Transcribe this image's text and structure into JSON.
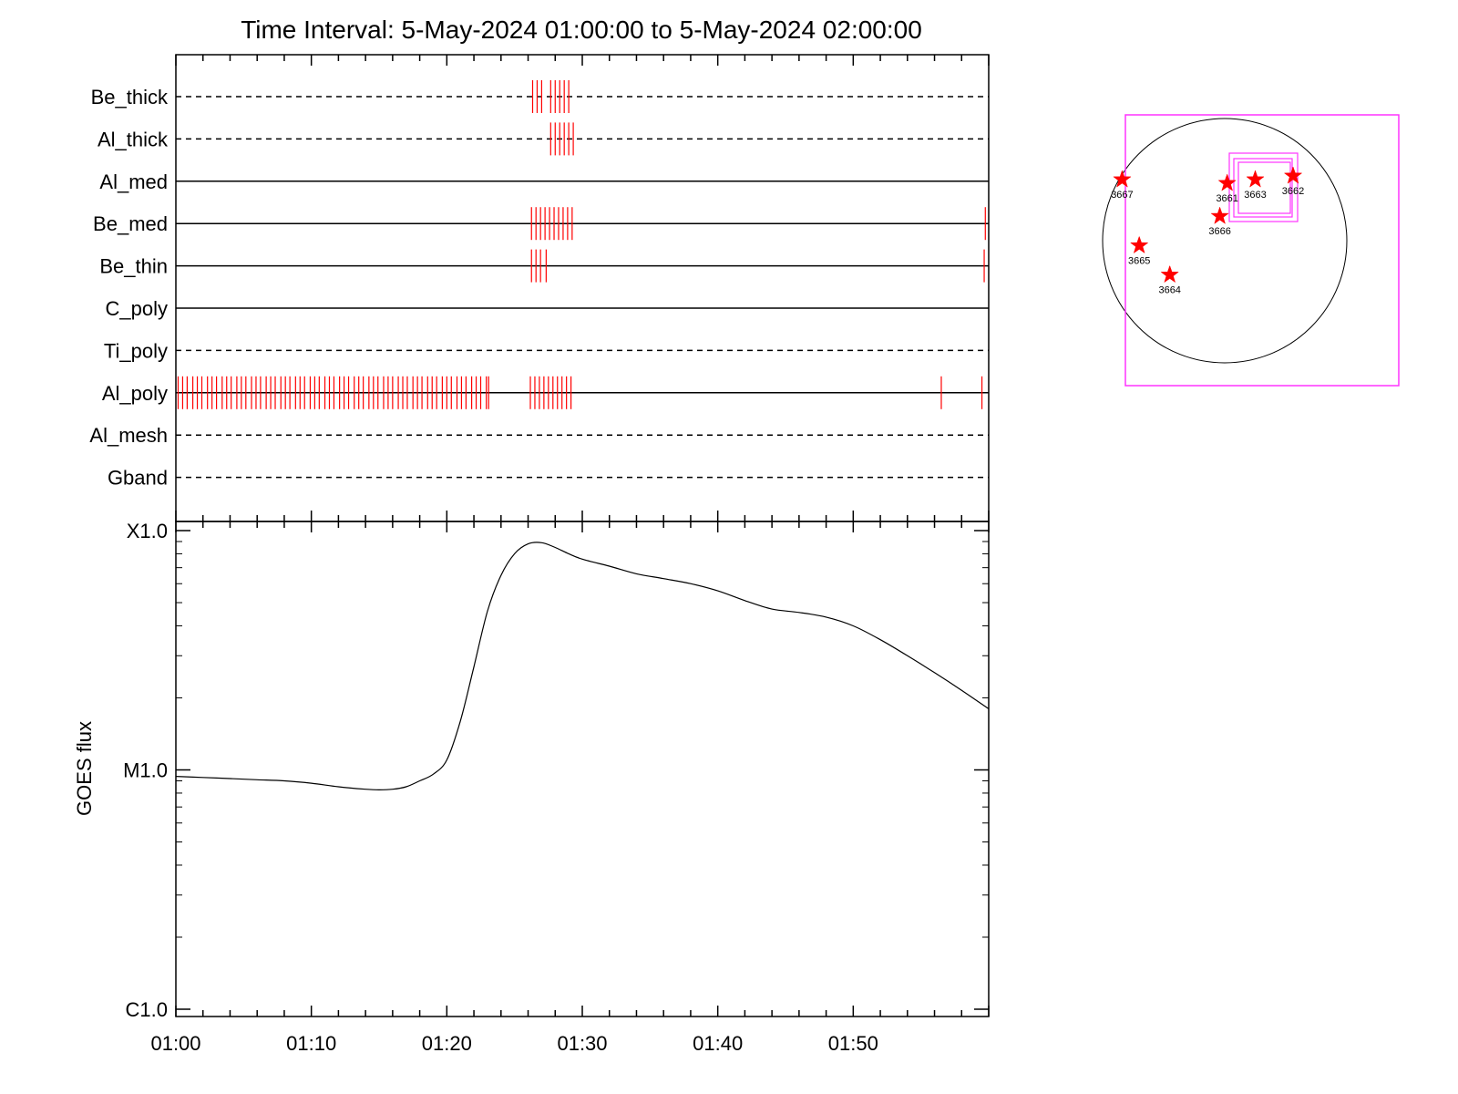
{
  "chart_data": [
    {
      "type": "timeline",
      "title": "Time Interval:  5-May-2024 01:00:00 to  5-May-2024 02:00:00",
      "x_range": [
        "01:00",
        "02:00"
      ],
      "colors": {
        "marker": "#ff0000",
        "line": "#000000"
      },
      "channels": [
        {
          "name": "Be_thick",
          "style": "dashed",
          "events": [
            "01:26:20",
            "01:26:40",
            "01:27:00",
            "01:27:40",
            "01:28:00",
            "01:28:20",
            "01:28:40",
            "01:29:00"
          ]
        },
        {
          "name": "Al_thick",
          "style": "dashed",
          "events": [
            "01:27:40",
            "01:28:00",
            "01:28:20",
            "01:28:40",
            "01:29:00",
            "01:29:20"
          ]
        },
        {
          "name": "Al_med",
          "style": "solid",
          "events": []
        },
        {
          "name": "Be_med",
          "style": "solid",
          "events": [
            "01:26:15",
            "01:26:35",
            "01:26:55",
            "01:27:15",
            "01:27:35",
            "01:27:55",
            "01:28:15",
            "01:28:35",
            "01:28:55",
            "01:29:15",
            "01:59:45"
          ]
        },
        {
          "name": "Be_thin",
          "style": "solid",
          "events": [
            "01:26:15",
            "01:26:35",
            "01:26:55",
            "01:27:20",
            "01:59:40"
          ]
        },
        {
          "name": "C_poly",
          "style": "solid",
          "events": []
        },
        {
          "name": "Ti_poly",
          "style": "dashed",
          "events": []
        },
        {
          "name": "Al_poly",
          "style": "solid",
          "events": [
            "01:00:10",
            "01:00:30",
            "01:00:50",
            "01:01:15",
            "01:01:35",
            "01:01:55",
            "01:02:20",
            "01:02:40",
            "01:03:00",
            "01:03:25",
            "01:03:45",
            "01:04:05",
            "01:04:30",
            "01:04:50",
            "01:05:10",
            "01:05:35",
            "01:05:55",
            "01:06:15",
            "01:06:40",
            "01:07:00",
            "01:07:20",
            "01:07:45",
            "01:08:05",
            "01:08:25",
            "01:08:50",
            "01:09:10",
            "01:09:30",
            "01:09:55",
            "01:10:15",
            "01:10:35",
            "01:11:00",
            "01:11:20",
            "01:11:40",
            "01:12:05",
            "01:12:25",
            "01:12:45",
            "01:13:10",
            "01:13:30",
            "01:13:50",
            "01:14:15",
            "01:14:35",
            "01:14:55",
            "01:15:20",
            "01:15:40",
            "01:16:00",
            "01:16:25",
            "01:16:45",
            "01:17:05",
            "01:17:30",
            "01:17:50",
            "01:18:10",
            "01:18:35",
            "01:18:55",
            "01:19:15",
            "01:19:40",
            "01:20:00",
            "01:20:20",
            "01:20:45",
            "01:21:05",
            "01:21:25",
            "01:21:50",
            "01:22:10",
            "01:22:30",
            "01:22:55",
            "01:23:05",
            "01:26:10",
            "01:26:30",
            "01:26:50",
            "01:27:10",
            "01:27:30",
            "01:27:50",
            "01:28:10",
            "01:28:30",
            "01:28:50",
            "01:29:10",
            "01:56:30",
            "01:59:30"
          ]
        },
        {
          "name": "Al_mesh",
          "style": "dashed",
          "events": []
        },
        {
          "name": "Gband",
          "style": "dashed",
          "events": []
        }
      ]
    },
    {
      "type": "line",
      "ylabel": "GOES flux",
      "yscale": "log",
      "ylim": [
        1e-06,
        0.0001
      ],
      "yticks": [
        {
          "label": "C1.0",
          "value": 1e-06
        },
        {
          "label": "M1.0",
          "value": 1e-05
        },
        {
          "label": "X1.0",
          "value": 0.0001
        }
      ],
      "xlabels": [
        "01:00",
        "01:10",
        "01:20",
        "01:30",
        "01:40",
        "01:50"
      ],
      "x_range": [
        "01:00",
        "02:00"
      ],
      "series": [
        {
          "x": [
            "01:00",
            "01:02",
            "01:04",
            "01:06",
            "01:08",
            "01:10",
            "01:12",
            "01:14",
            "01:15",
            "01:16",
            "01:17",
            "01:18",
            "01:19",
            "01:20",
            "01:21",
            "01:22",
            "01:23",
            "01:24",
            "01:25",
            "01:26",
            "01:27",
            "01:28",
            "01:29",
            "01:30",
            "01:32",
            "01:34",
            "01:36",
            "01:38",
            "01:40",
            "01:42",
            "01:44",
            "01:46",
            "01:48",
            "01:50",
            "01:52",
            "01:54",
            "01:56",
            "01:58",
            "02:00"
          ],
          "values": [
            9.4e-06,
            9.3e-06,
            9.2e-06,
            9.1e-06,
            9e-06,
            8.8e-06,
            8.5e-06,
            8.3e-06,
            8.25e-06,
            8.3e-06,
            8.5e-06,
            9e-06,
            9.6e-06,
            1.1e-05,
            1.6e-05,
            2.7e-05,
            4.6e-05,
            6.5e-05,
            8e-05,
            8.8e-05,
            8.9e-05,
            8.5e-05,
            8e-05,
            7.6e-05,
            7.1e-05,
            6.6e-05,
            6.3e-05,
            6e-05,
            5.6e-05,
            5.1e-05,
            4.7e-05,
            4.55e-05,
            4.35e-05,
            4e-05,
            3.5e-05,
            3e-05,
            2.55e-05,
            2.15e-05,
            1.8e-05
          ]
        }
      ]
    },
    {
      "type": "scatter",
      "colors": {
        "marker": "#ff0000",
        "box": "#ff33ff",
        "disk": "#000000"
      },
      "points": [
        {
          "label": "3667",
          "x": -0.84,
          "y": 0.5
        },
        {
          "label": "3661",
          "x": 0.02,
          "y": 0.47
        },
        {
          "label": "3663",
          "x": 0.25,
          "y": 0.5
        },
        {
          "label": "3662",
          "x": 0.56,
          "y": 0.53
        },
        {
          "label": "3666",
          "x": -0.04,
          "y": 0.2
        },
        {
          "label": "3665",
          "x": -0.7,
          "y": -0.04
        },
        {
          "label": "3664",
          "x": -0.45,
          "y": -0.28
        }
      ]
    }
  ]
}
